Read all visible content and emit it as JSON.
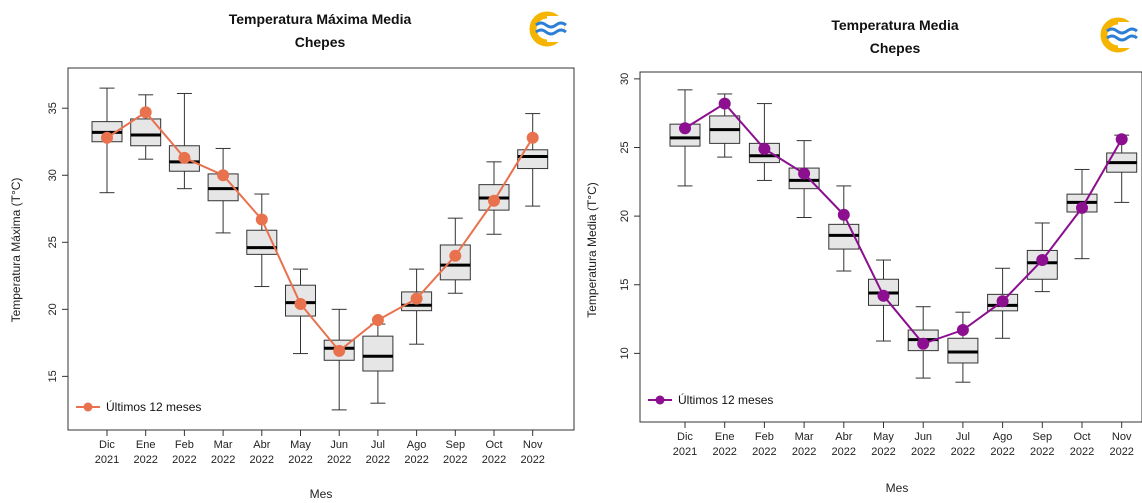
{
  "charts": [
    {
      "id": "left",
      "chart_data": {
        "type": "box",
        "title": "Temperatura Máxima Media",
        "subtitle": "Chepes",
        "xlabel": "Mes",
        "ylabel": "Temperatura Máxima (T°C)",
        "ylim": [
          11,
          38
        ],
        "yticks": [
          15,
          20,
          25,
          30,
          35
        ],
        "categories": [
          {
            "month": "Dic",
            "year": "2021"
          },
          {
            "month": "Ene",
            "year": "2022"
          },
          {
            "month": "Feb",
            "year": "2022"
          },
          {
            "month": "Mar",
            "year": "2022"
          },
          {
            "month": "Abr",
            "year": "2022"
          },
          {
            "month": "May",
            "year": "2022"
          },
          {
            "month": "Jun",
            "year": "2022"
          },
          {
            "month": "Jul",
            "year": "2022"
          },
          {
            "month": "Ago",
            "year": "2022"
          },
          {
            "month": "Sep",
            "year": "2022"
          },
          {
            "month": "Oct",
            "year": "2022"
          },
          {
            "month": "Nov",
            "year": "2022"
          }
        ],
        "boxes": [
          {
            "min": 28.7,
            "q1": 32.5,
            "median": 33.2,
            "q3": 34.0,
            "max": 36.5
          },
          {
            "min": 31.2,
            "q1": 32.2,
            "median": 33.0,
            "q3": 34.2,
            "max": 36.0
          },
          {
            "min": 29.0,
            "q1": 30.3,
            "median": 31.0,
            "q3": 32.2,
            "max": 36.1
          },
          {
            "min": 25.7,
            "q1": 28.1,
            "median": 29.0,
            "q3": 30.1,
            "max": 32.0
          },
          {
            "min": 21.7,
            "q1": 24.1,
            "median": 24.6,
            "q3": 25.9,
            "max": 28.6
          },
          {
            "min": 16.7,
            "q1": 19.5,
            "median": 20.5,
            "q3": 21.8,
            "max": 23.0
          },
          {
            "min": 12.5,
            "q1": 16.2,
            "median": 17.1,
            "q3": 17.7,
            "max": 20.0
          },
          {
            "min": 13.0,
            "q1": 15.4,
            "median": 16.5,
            "q3": 18.0,
            "max": 18.9
          },
          {
            "min": 17.4,
            "q1": 19.9,
            "median": 20.3,
            "q3": 21.3,
            "max": 23.0
          },
          {
            "min": 21.2,
            "q1": 22.2,
            "median": 23.3,
            "q3": 24.8,
            "max": 26.8
          },
          {
            "min": 25.6,
            "q1": 27.4,
            "median": 28.3,
            "q3": 29.3,
            "max": 31.0
          },
          {
            "min": 27.7,
            "q1": 30.5,
            "median": 31.4,
            "q3": 31.9,
            "max": 34.6
          }
        ],
        "series": [
          {
            "name": "Últimos 12 meses",
            "color": "#e8714e",
            "values": [
              32.8,
              34.7,
              31.3,
              30.0,
              26.7,
              20.4,
              16.9,
              19.2,
              20.8,
              24.0,
              28.1,
              32.8
            ]
          }
        ],
        "legend": "bottom-left",
        "grid": false
      }
    },
    {
      "id": "right",
      "chart_data": {
        "type": "box",
        "title": "Temperatura Media",
        "subtitle": "Chepes",
        "xlabel": "Mes",
        "ylabel": "Temperatura Media (T°C)",
        "ylim": [
          5,
          30.5
        ],
        "yticks": [
          10,
          15,
          20,
          25,
          30
        ],
        "categories": [
          {
            "month": "Dic",
            "year": "2021"
          },
          {
            "month": "Ene",
            "year": "2022"
          },
          {
            "month": "Feb",
            "year": "2022"
          },
          {
            "month": "Mar",
            "year": "2022"
          },
          {
            "month": "Abr",
            "year": "2022"
          },
          {
            "month": "May",
            "year": "2022"
          },
          {
            "month": "Jun",
            "year": "2022"
          },
          {
            "month": "Jul",
            "year": "2022"
          },
          {
            "month": "Ago",
            "year": "2022"
          },
          {
            "month": "Sep",
            "year": "2022"
          },
          {
            "month": "Oct",
            "year": "2022"
          },
          {
            "month": "Nov",
            "year": "2022"
          }
        ],
        "boxes": [
          {
            "min": 22.2,
            "q1": 25.1,
            "median": 25.7,
            "q3": 26.7,
            "max": 29.2
          },
          {
            "min": 24.3,
            "q1": 25.3,
            "median": 26.3,
            "q3": 27.3,
            "max": 28.9
          },
          {
            "min": 22.6,
            "q1": 23.9,
            "median": 24.4,
            "q3": 25.3,
            "max": 28.2
          },
          {
            "min": 19.9,
            "q1": 22.0,
            "median": 22.6,
            "q3": 23.5,
            "max": 25.5
          },
          {
            "min": 16.0,
            "q1": 17.6,
            "median": 18.6,
            "q3": 19.4,
            "max": 22.2
          },
          {
            "min": 10.9,
            "q1": 13.5,
            "median": 14.4,
            "q3": 15.4,
            "max": 16.8
          },
          {
            "min": 8.2,
            "q1": 10.2,
            "median": 11.0,
            "q3": 11.7,
            "max": 13.4
          },
          {
            "min": 7.9,
            "q1": 9.3,
            "median": 10.1,
            "q3": 11.1,
            "max": 13.0
          },
          {
            "min": 11.1,
            "q1": 13.1,
            "median": 13.5,
            "q3": 14.3,
            "max": 16.2
          },
          {
            "min": 14.5,
            "q1": 15.4,
            "median": 16.6,
            "q3": 17.5,
            "max": 19.5
          },
          {
            "min": 16.9,
            "q1": 20.3,
            "median": 21.0,
            "q3": 21.6,
            "max": 23.4
          },
          {
            "min": 21.0,
            "q1": 23.2,
            "median": 23.9,
            "q3": 24.6,
            "max": 25.9
          }
        ],
        "series": [
          {
            "name": "Últimos 12 meses",
            "color": "#8b0f8f",
            "values": [
              26.4,
              28.2,
              24.9,
              23.1,
              20.1,
              14.2,
              10.7,
              11.7,
              13.8,
              16.8,
              20.6,
              25.6
            ]
          }
        ],
        "legend": "bottom-left",
        "grid": false
      }
    }
  ],
  "logo": {
    "name": "wave-logo-icon",
    "ring_color": "#f4b400",
    "wave_color": "#2c7fd6"
  }
}
